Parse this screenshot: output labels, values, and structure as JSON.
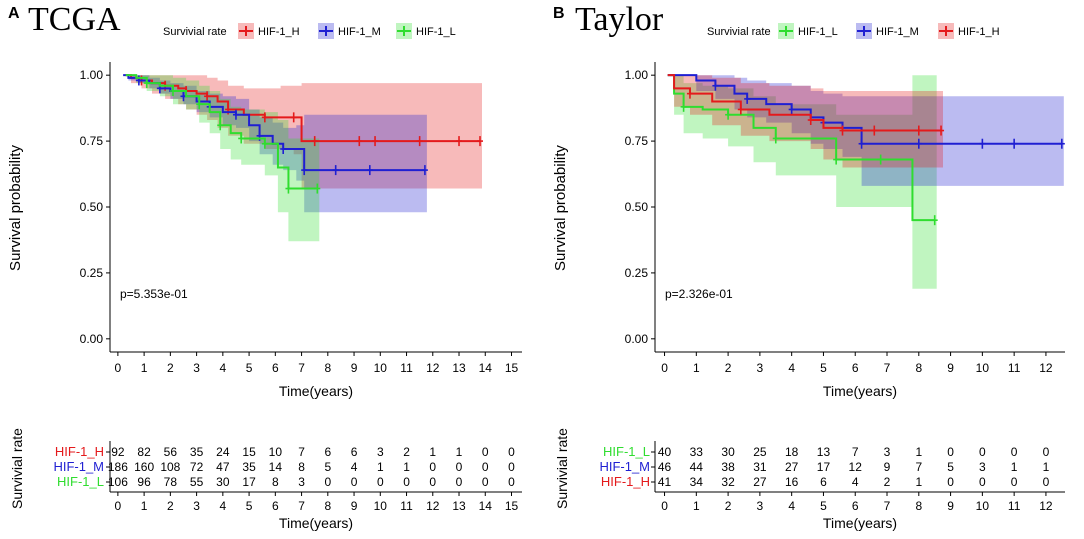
{
  "chart_data": [
    {
      "type": "line",
      "panel_letter": "A",
      "title": "TCGA",
      "legend_title": "Survivial rate",
      "legend": [
        "HIF-1_H",
        "HIF-1_M",
        "HIF-1_L"
      ],
      "xlabel": "Time(years)",
      "ylabel": "Survival probability",
      "xlim": [
        -0.3,
        15.4
      ],
      "ylim": [
        -0.05,
        1.05
      ],
      "xticks": [
        "0",
        "1",
        "2",
        "3",
        "4",
        "5",
        "6",
        "7",
        "8",
        "9",
        "10",
        "11",
        "12",
        "13",
        "14",
        "15"
      ],
      "yticks": [
        "0.00",
        "0.25",
        "0.50",
        "0.75",
        "1.00"
      ],
      "pvalue": "p=5.353e-01",
      "series": [
        {
          "name": "HIF-1_H",
          "color": "#e41a1c",
          "x": [
            0.3,
            0.5,
            0.9,
            1.3,
            1.8,
            2.3,
            2.6,
            3.0,
            3.4,
            3.8,
            4.2,
            4.8,
            5.6,
            6.2,
            6.7,
            7.0,
            7.5,
            8.0,
            9.2,
            9.5,
            9.8,
            10.5,
            11.5,
            12.0,
            13.0,
            13.8
          ],
          "y": [
            1.0,
            0.99,
            0.98,
            0.97,
            0.96,
            0.95,
            0.94,
            0.93,
            0.92,
            0.9,
            0.87,
            0.85,
            0.84,
            0.84,
            0.84,
            0.75,
            0.75,
            0.75,
            0.75,
            0.75,
            0.75,
            0.75,
            0.75,
            0.75,
            0.75,
            0.75
          ],
          "lower": [
            1.0,
            0.97,
            0.95,
            0.93,
            0.91,
            0.89,
            0.87,
            0.85,
            0.83,
            0.8,
            0.77,
            0.74,
            0.72,
            0.72,
            0.7,
            0.57,
            0.57,
            0.57,
            0.57,
            0.57,
            0.57,
            0.57,
            0.57,
            0.57,
            0.57,
            0.57
          ],
          "upper": [
            1.0,
            1.0,
            1.0,
            1.0,
            1.0,
            1.0,
            1.0,
            1.0,
            0.99,
            0.98,
            0.96,
            0.95,
            0.95,
            0.96,
            0.96,
            0.97,
            0.97,
            0.97,
            0.97,
            0.97,
            0.97,
            0.97,
            0.97,
            0.97,
            0.97,
            0.97
          ]
        },
        {
          "name": "HIF-1_M",
          "color": "#1f1fd2",
          "x": [
            0.2,
            0.4,
            0.8,
            1.2,
            1.6,
            2.0,
            2.5,
            3.0,
            3.5,
            4.0,
            4.5,
            5.0,
            5.4,
            5.9,
            6.3,
            6.8,
            7.1,
            7.5,
            8.3,
            9.3,
            9.6,
            10.0,
            11.7
          ],
          "y": [
            1.0,
            0.99,
            0.98,
            0.97,
            0.95,
            0.94,
            0.92,
            0.9,
            0.88,
            0.86,
            0.85,
            0.81,
            0.77,
            0.74,
            0.72,
            0.72,
            0.64,
            0.64,
            0.64,
            0.64,
            0.64,
            0.64,
            0.64
          ],
          "lower": [
            1.0,
            0.98,
            0.97,
            0.95,
            0.93,
            0.91,
            0.89,
            0.86,
            0.84,
            0.81,
            0.8,
            0.75,
            0.7,
            0.66,
            0.64,
            0.6,
            0.48,
            0.48,
            0.48,
            0.48,
            0.48,
            0.48,
            0.48
          ],
          "upper": [
            1.0,
            1.0,
            1.0,
            0.99,
            0.98,
            0.97,
            0.96,
            0.94,
            0.93,
            0.92,
            0.91,
            0.87,
            0.84,
            0.82,
            0.8,
            0.81,
            0.85,
            0.85,
            0.85,
            0.85,
            0.85,
            0.85,
            0.85
          ]
        },
        {
          "name": "HIF-1_L",
          "color": "#2fdd2f",
          "x": [
            0.3,
            0.7,
            1.1,
            1.6,
            2.1,
            2.6,
            3.1,
            3.5,
            3.9,
            4.3,
            4.7,
            5.1,
            5.6,
            6.1,
            6.5,
            7.0,
            7.6
          ],
          "y": [
            1.0,
            0.99,
            0.97,
            0.96,
            0.94,
            0.92,
            0.89,
            0.86,
            0.81,
            0.78,
            0.76,
            0.76,
            0.74,
            0.65,
            0.57,
            0.57,
            0.57
          ],
          "lower": [
            1.0,
            0.97,
            0.94,
            0.92,
            0.89,
            0.87,
            0.82,
            0.78,
            0.72,
            0.68,
            0.66,
            0.66,
            0.62,
            0.48,
            0.37,
            0.37,
            0.37
          ],
          "upper": [
            1.0,
            1.0,
            1.0,
            1.0,
            0.99,
            0.98,
            0.96,
            0.94,
            0.91,
            0.88,
            0.87,
            0.87,
            0.86,
            0.83,
            0.76,
            0.76,
            0.76
          ]
        }
      ],
      "risk_table": {
        "title": "Survivial rate",
        "xlabel": "Time(years)",
        "rows": [
          {
            "name": "HIF-1_H",
            "color": "#e41a1c",
            "values": [
              92,
              82,
              56,
              35,
              24,
              15,
              10,
              7,
              6,
              6,
              3,
              2,
              1,
              1,
              0,
              0
            ]
          },
          {
            "name": "HIF-1_M",
            "color": "#1f1fd2",
            "values": [
              186,
              160,
              108,
              72,
              47,
              35,
              14,
              8,
              5,
              4,
              1,
              1,
              0,
              0,
              0,
              0
            ]
          },
          {
            "name": "HIF-1_L",
            "color": "#2fdd2f",
            "values": [
              106,
              96,
              78,
              55,
              30,
              17,
              8,
              3,
              0,
              0,
              0,
              0,
              0,
              0,
              0,
              0
            ]
          }
        ]
      }
    },
    {
      "type": "line",
      "panel_letter": "B",
      "title": "Taylor",
      "legend_title": "Survivial rate",
      "legend": [
        "HIF-1_L",
        "HIF-1_M",
        "HIF-1_H"
      ],
      "xlabel": "Time(years)",
      "ylabel": "Survival probability",
      "xlim": [
        -0.3,
        12.6
      ],
      "ylim": [
        -0.05,
        1.05
      ],
      "xticks": [
        "0",
        "1",
        "2",
        "3",
        "4",
        "5",
        "6",
        "7",
        "8",
        "9",
        "10",
        "11",
        "12"
      ],
      "yticks": [
        "0.00",
        "0.25",
        "0.50",
        "0.75",
        "1.00"
      ],
      "pvalue": "p=2.326e-01",
      "series": [
        {
          "name": "HIF-1_L",
          "color": "#2fdd2f",
          "x": [
            0.1,
            0.3,
            0.6,
            1.2,
            2.0,
            2.8,
            3.5,
            4.5,
            5.4,
            6.0,
            6.8,
            7.8,
            8.5
          ],
          "y": [
            1.0,
            0.93,
            0.88,
            0.87,
            0.85,
            0.8,
            0.76,
            0.76,
            0.68,
            0.68,
            0.68,
            0.45,
            0.45
          ],
          "lower": [
            1.0,
            0.85,
            0.78,
            0.76,
            0.73,
            0.67,
            0.62,
            0.62,
            0.5,
            0.5,
            0.5,
            0.19,
            0.19
          ],
          "upper": [
            1.0,
            1.0,
            0.97,
            0.96,
            0.95,
            0.92,
            0.89,
            0.89,
            0.85,
            0.85,
            0.85,
            1.0,
            1.0
          ]
        },
        {
          "name": "HIF-1_M",
          "color": "#1f1fd2",
          "x": [
            0.1,
            1.0,
            1.6,
            2.2,
            2.6,
            3.2,
            4.0,
            4.6,
            5.0,
            5.6,
            6.2,
            7.0,
            8.0,
            9.0,
            10.0,
            10.6,
            11.0,
            12.5
          ],
          "y": [
            1.0,
            0.98,
            0.96,
            0.93,
            0.91,
            0.89,
            0.87,
            0.84,
            0.82,
            0.8,
            0.74,
            0.74,
            0.74,
            0.74,
            0.74,
            0.74,
            0.74,
            0.74
          ],
          "lower": [
            1.0,
            0.94,
            0.91,
            0.87,
            0.84,
            0.82,
            0.78,
            0.74,
            0.72,
            0.69,
            0.58,
            0.58,
            0.58,
            0.58,
            0.58,
            0.58,
            0.58,
            0.58
          ],
          "upper": [
            1.0,
            1.0,
            1.0,
            0.99,
            0.98,
            0.97,
            0.96,
            0.94,
            0.93,
            0.92,
            0.92,
            0.92,
            0.92,
            0.92,
            0.92,
            0.92,
            0.92,
            0.92
          ]
        },
        {
          "name": "HIF-1_H",
          "color": "#e41a1c",
          "x": [
            0.1,
            0.3,
            0.8,
            1.5,
            2.4,
            3.3,
            4.6,
            5.0,
            5.6,
            6.0,
            6.6,
            7.2,
            8.0,
            8.7
          ],
          "y": [
            1.0,
            0.95,
            0.93,
            0.9,
            0.87,
            0.85,
            0.83,
            0.8,
            0.79,
            0.79,
            0.79,
            0.79,
            0.79,
            0.79
          ],
          "lower": [
            1.0,
            0.88,
            0.85,
            0.81,
            0.77,
            0.75,
            0.72,
            0.68,
            0.65,
            0.65,
            0.65,
            0.65,
            0.65,
            0.65
          ],
          "upper": [
            1.0,
            1.0,
            1.0,
            0.99,
            0.97,
            0.96,
            0.95,
            0.94,
            0.94,
            0.94,
            0.94,
            0.94,
            0.94,
            0.94
          ]
        }
      ],
      "risk_table": {
        "title": "Survivial rate",
        "xlabel": "Time(years)",
        "rows": [
          {
            "name": "HIF-1_L",
            "color": "#2fdd2f",
            "values": [
              40,
              33,
              30,
              25,
              18,
              13,
              7,
              3,
              1,
              0,
              0,
              0,
              0
            ]
          },
          {
            "name": "HIF-1_M",
            "color": "#1f1fd2",
            "values": [
              46,
              44,
              38,
              31,
              27,
              17,
              12,
              9,
              7,
              5,
              3,
              1,
              1
            ]
          },
          {
            "name": "HIF-1_H",
            "color": "#e41a1c",
            "values": [
              41,
              34,
              32,
              27,
              16,
              6,
              4,
              2,
              1,
              0,
              0,
              0,
              0
            ]
          }
        ]
      }
    }
  ]
}
